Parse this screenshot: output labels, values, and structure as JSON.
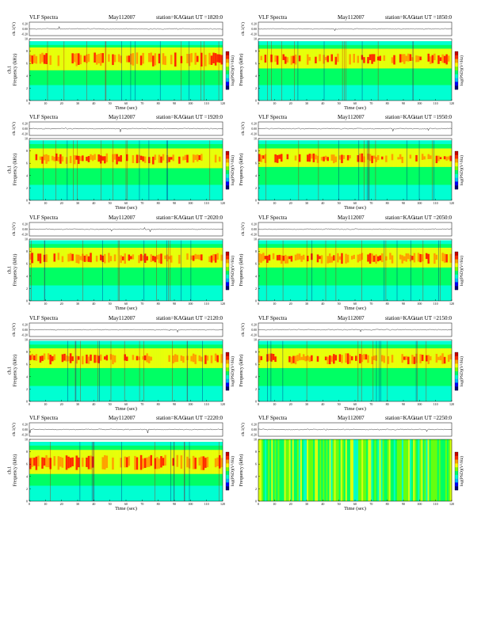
{
  "page": {
    "colors": {
      "background": "#ffffff",
      "axis": "#000000",
      "waveform": "#000000"
    },
    "colormap": [
      "#00007a",
      "#0000ff",
      "#00b4ff",
      "#00ffd2",
      "#00ff64",
      "#78ff00",
      "#ffff00",
      "#ffa000",
      "#ff2a00",
      "#c80000"
    ]
  },
  "chart_data": [
    {
      "type": "heatmap",
      "header": {
        "label": "VLF Spectra",
        "date": "May112007",
        "station": "station=KAG",
        "start": "start  UT =1820:0"
      },
      "waveform": {
        "ylabel": "ch.1(V)",
        "yticks": [
          "0.20",
          "0.00",
          "-0.20"
        ]
      },
      "spectrogram": {
        "ylabel": "ch.1\nFrequency (kHz)",
        "xlabel": "Time (sec)",
        "xlim": [
          0,
          120
        ],
        "ylim": [
          0,
          10
        ],
        "xticks": [
          0,
          10,
          20,
          30,
          40,
          50,
          60,
          70,
          80,
          90,
          100,
          110,
          120
        ],
        "yticks": [
          0,
          2,
          4,
          6,
          8,
          10
        ],
        "colorbar_label": "log(PSD)(V²/Hz)",
        "level": {
          "top_kHz": 9.6,
          "red_band_kHz": [
            5.5,
            7.8
          ]
        }
      }
    },
    {
      "type": "heatmap",
      "header": {
        "label": "VLF Spectra",
        "date": "May112007",
        "station": "station=KAG",
        "start": "start  UT =1850:0"
      },
      "waveform": {
        "ylabel": "ch.1(V)",
        "yticks": [
          "0.20",
          "0.00",
          "-0.20"
        ]
      },
      "spectrogram": {
        "ylabel": "Frequency (kHz)",
        "xlabel": "Time (sec)",
        "xlim": [
          0,
          120
        ],
        "ylim": [
          0,
          10
        ],
        "xticks": [
          0,
          10,
          20,
          30,
          40,
          50,
          60,
          70,
          80,
          90,
          100,
          110,
          120
        ],
        "yticks": [
          0,
          2,
          4,
          6,
          8,
          10
        ],
        "colorbar_label": "log(PSD)(V²/Hz)",
        "level": {
          "top_kHz": 9.6,
          "red_band_kHz": [
            5.8,
            7.6
          ]
        }
      }
    },
    {
      "type": "heatmap",
      "header": {
        "label": "VLF Spectra",
        "date": "May112007",
        "station": "station=KAG",
        "start": "start  UT =1920:0"
      },
      "waveform": {
        "ylabel": "ch.1(V)",
        "yticks": [
          "0.20",
          "0.00",
          "-0.20"
        ]
      },
      "spectrogram": {
        "ylabel": "ch.1\nFrequency (kHz)",
        "xlabel": "Time (sec)",
        "xlim": [
          0,
          120
        ],
        "ylim": [
          0,
          10
        ],
        "xticks": [
          0,
          10,
          20,
          30,
          40,
          50,
          60,
          70,
          80,
          90,
          100,
          110,
          120
        ],
        "yticks": [
          0,
          2,
          4,
          6,
          8,
          10
        ],
        "colorbar_label": "log(PSD)(V²/Hz)",
        "level": {
          "top_kHz": 9.7,
          "red_band_kHz": [
            5.8,
            7.6
          ]
        }
      }
    },
    {
      "type": "heatmap",
      "header": {
        "label": "VLF Spectra",
        "date": "May112007",
        "station": "station=KAG",
        "start": "start  UT =1950:0"
      },
      "waveform": {
        "ylabel": "ch.1(V)",
        "yticks": [
          "0.20",
          "0.00",
          "-0.20"
        ]
      },
      "spectrogram": {
        "ylabel": "Frequency (kHz)",
        "xlabel": "Time (sec)",
        "xlim": [
          0,
          120
        ],
        "ylim": [
          0,
          10
        ],
        "xticks": [
          0,
          10,
          20,
          30,
          40,
          50,
          60,
          70,
          80,
          90,
          100,
          110,
          120
        ],
        "yticks": [
          0,
          2,
          4,
          6,
          8,
          10
        ],
        "colorbar_label": "log(PSD)(V²/Hz)",
        "level": {
          "top_kHz": 9.7,
          "red_band_kHz": [
            6.0,
            7.6
          ]
        }
      }
    },
    {
      "type": "heatmap",
      "header": {
        "label": "VLF Spectra",
        "date": "May112007",
        "station": "station=KAG",
        "start": "start  UT =2020:0"
      },
      "waveform": {
        "ylabel": "ch.1(V)",
        "yticks": [
          "0.20",
          "0.00",
          "-0.20"
        ]
      },
      "spectrogram": {
        "ylabel": "ch.1\nFrequency (kHz)",
        "xlabel": "Time (sec)",
        "xlim": [
          0,
          120
        ],
        "ylim": [
          0,
          10
        ],
        "xticks": [
          0,
          10,
          20,
          30,
          40,
          50,
          60,
          70,
          80,
          90,
          100,
          110,
          120
        ],
        "yticks": [
          0,
          2,
          4,
          6,
          8,
          10
        ],
        "colorbar_label": "log(PSD)(V²/Hz)",
        "level": {
          "top_kHz": 9.8,
          "red_band_kHz": [
            6.0,
            7.8
          ]
        }
      }
    },
    {
      "type": "heatmap",
      "header": {
        "label": "VLF Spectra",
        "date": "May112007",
        "station": "station=KAG",
        "start": "start  UT =2050:0"
      },
      "waveform": {
        "ylabel": "ch.1(V)",
        "yticks": [
          "0.20",
          "0.00",
          "-0.20"
        ]
      },
      "spectrogram": {
        "ylabel": "Frequency (kHz)",
        "xlabel": "Time (sec)",
        "xlim": [
          0,
          120
        ],
        "ylim": [
          0,
          10
        ],
        "xticks": [
          0,
          10,
          20,
          30,
          40,
          50,
          60,
          70,
          80,
          90,
          100,
          110,
          120
        ],
        "yticks": [
          0,
          2,
          4,
          6,
          8,
          10
        ],
        "colorbar_label": "log(PSD)(V²/Hz)",
        "level": {
          "top_kHz": 9.8,
          "red_band_kHz": [
            6.0,
            7.8
          ]
        }
      }
    },
    {
      "type": "heatmap",
      "header": {
        "label": "VLF Spectra",
        "date": "May112007",
        "station": "station=KAG",
        "start": "start  UT =2120:0"
      },
      "waveform": {
        "ylabel": "ch.1(V)",
        "yticks": [
          "0.20",
          "0.00",
          "-0.20"
        ]
      },
      "spectrogram": {
        "ylabel": "ch.1\nFrequency (kHz)",
        "xlabel": "Time (sec)",
        "xlim": [
          0,
          120
        ],
        "ylim": [
          0,
          10
        ],
        "xticks": [
          0,
          10,
          20,
          30,
          40,
          50,
          60,
          70,
          80,
          90,
          100,
          110,
          120
        ],
        "yticks": [
          0,
          2,
          4,
          6,
          8,
          10
        ],
        "colorbar_label": "log(PSD)(V²/Hz)",
        "level": {
          "top_kHz": 9.8,
          "red_band_kHz": [
            6.0,
            7.8
          ]
        }
      }
    },
    {
      "type": "heatmap",
      "header": {
        "label": "VLF Spectra",
        "date": "May112007",
        "station": "station=KAG",
        "start": "start  UT =2150:0"
      },
      "waveform": {
        "ylabel": "ch.1(V)",
        "yticks": [
          "0.20",
          "0.00",
          "-0.20"
        ]
      },
      "spectrogram": {
        "ylabel": "Frequency (kHz)",
        "xlabel": "Time (sec)",
        "xlim": [
          0,
          120
        ],
        "ylim": [
          0,
          10
        ],
        "xticks": [
          0,
          10,
          20,
          30,
          40,
          50,
          60,
          70,
          80,
          90,
          100,
          110,
          120
        ],
        "yticks": [
          0,
          2,
          4,
          6,
          8,
          10
        ],
        "colorbar_label": "log(PSD)(V²/Hz)",
        "level": {
          "top_kHz": 9.8,
          "red_band_kHz": [
            6.0,
            7.8
          ]
        }
      }
    },
    {
      "type": "heatmap",
      "header": {
        "label": "VLF Spectra",
        "date": "May112007",
        "station": "station=KAG",
        "start": "start  UT =2220:0"
      },
      "waveform": {
        "ylabel": "ch.1(V)",
        "yticks": [
          "0.20",
          "0.00",
          "-0.20"
        ]
      },
      "spectrogram": {
        "ylabel": "ch.1\nFrequency (kHz)",
        "xlabel": "Time (sec)",
        "xlim": [
          0,
          120
        ],
        "ylim": [
          0,
          10
        ],
        "xticks": [
          0,
          10,
          20,
          30,
          40,
          50,
          60,
          70,
          80,
          90,
          100,
          110,
          120
        ],
        "yticks": [
          0,
          2,
          4,
          6,
          8,
          10
        ],
        "colorbar_label": "log(PSD)(V²/Hz)",
        "level": {
          "top_kHz": 9.6,
          "red_band_kHz": [
            5.0,
            7.5
          ]
        }
      }
    },
    {
      "type": "heatmap",
      "header": {
        "label": "VLF Spectra",
        "date": "May112007",
        "station": "station=KAG",
        "start": "start  UT =2250:0"
      },
      "waveform": {
        "ylabel": "ch.1(V)",
        "yticks": [
          "0.20",
          "0.00",
          "-0.20"
        ]
      },
      "spectrogram": {
        "ylabel": "Frequency (kHz)",
        "xlabel": "Time (sec)",
        "xlim": [
          0,
          120
        ],
        "ylim": [
          0,
          10
        ],
        "xticks": [
          0,
          10,
          20,
          30,
          40,
          50,
          60,
          70,
          80,
          90,
          100,
          110,
          120
        ],
        "yticks": [
          0,
          2,
          4,
          6,
          8,
          10
        ],
        "colorbar_label": "log(PSD)(V²/Hz)",
        "level": {
          "top_kHz": 10,
          "uniform": true
        }
      }
    }
  ]
}
